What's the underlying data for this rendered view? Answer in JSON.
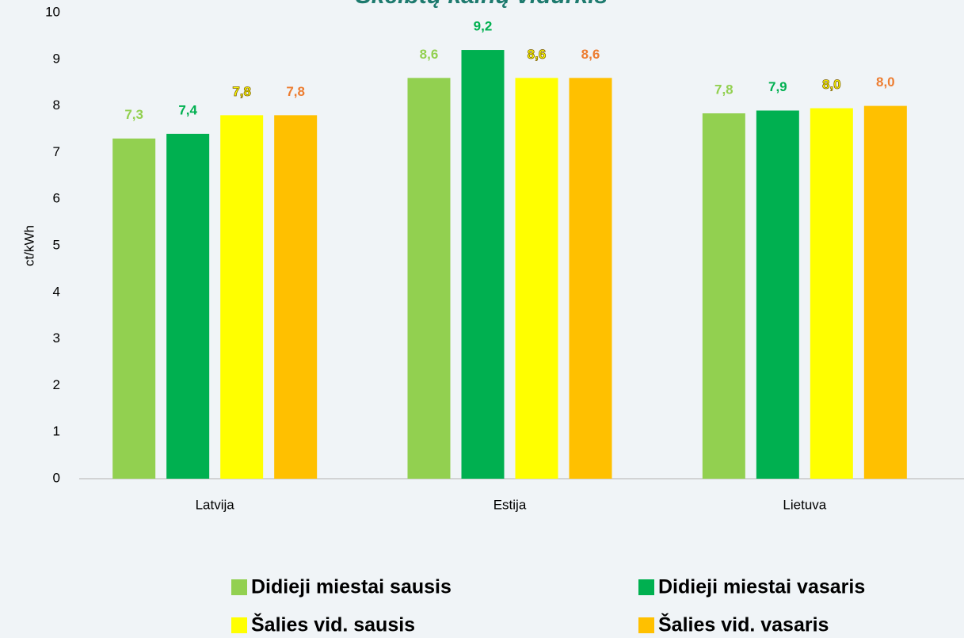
{
  "chart_data": {
    "type": "bar",
    "title": "Skelbtų kainų vidurkis",
    "y_label": "ct/kWh",
    "categories": [
      "Latvija",
      "Estija",
      "Lietuva"
    ],
    "series": [
      {
        "name": "Didieji miestai sausis",
        "color": "#92d050",
        "label_color": "#92d050",
        "values": [
          7.3,
          8.6,
          7.84
        ],
        "value_labels": [
          "7,3",
          "8,6",
          "7,8"
        ]
      },
      {
        "name": "Didieji miestai vasaris",
        "color": "#00b050",
        "label_color": "#00b050",
        "values": [
          7.4,
          9.2,
          7.9
        ],
        "value_labels": [
          "7,4",
          "9,2",
          "7,9"
        ]
      },
      {
        "name": "Šalies vid. sausis",
        "color": "#ffff00",
        "label_color": "#ffff00",
        "values": [
          7.8,
          8.6,
          7.95
        ],
        "value_labels": [
          "7,8",
          "8,6",
          "8,0"
        ]
      },
      {
        "name": "Šalies vid. vasaris",
        "color": "#ffc000",
        "label_color": "#ed7d31",
        "values": [
          7.8,
          8.6,
          8.0
        ],
        "value_labels": [
          "7,8",
          "8,6",
          "8,0"
        ]
      }
    ],
    "ylim": [
      0,
      10
    ],
    "yticks": [
      0,
      1,
      2,
      3,
      4,
      5,
      6,
      7,
      8,
      9,
      10
    ],
    "grid": false
  }
}
